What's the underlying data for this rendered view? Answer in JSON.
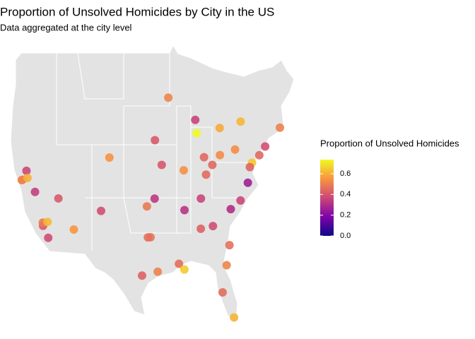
{
  "chart_data": {
    "type": "map-points",
    "title": "Proportion of Unsolved Homicides by City in the US",
    "subtitle": "Data aggregated at the city level",
    "legend_title": "Proportion of Unsolved Homicides",
    "colormap": "plasma",
    "clim": [
      0,
      0.736
    ],
    "cticks": [
      {
        "value": 0,
        "label": "0.0"
      },
      {
        "value": 0.2,
        "label": "0.2"
      },
      {
        "value": 0.4,
        "label": "0.4"
      },
      {
        "value": 0.6,
        "label": "0.6"
      }
    ],
    "xlim": [
      -125,
      -66
    ],
    "ylim": [
      24,
      50
    ],
    "x": [
      -106.65,
      -84.39,
      -76.61,
      -91.15,
      -86.8,
      -71.06,
      -78.88,
      -80.84,
      -87.63,
      -84.51,
      -83.0,
      -96.8,
      -104.99,
      -83.05,
      -78.9,
      -97.33,
      -119.79,
      -95.37,
      -86.16,
      -81.66,
      -94.58,
      -115.14,
      -118.19,
      -118.24,
      -85.76,
      -90.05,
      -80.19,
      -87.91,
      -93.27,
      -86.78,
      -90.07,
      -74.0,
      -122.27,
      -97.52,
      -95.93,
      -75.16,
      -112.07,
      -79.99,
      -77.44,
      -121.49,
      -98.49,
      -117.29,
      -117.16,
      -122.42,
      -81.1,
      -90.2,
      -121.29,
      -82.46,
      -95.99,
      -77.04
    ],
    "y": [
      35.08,
      33.75,
      39.29,
      30.45,
      33.52,
      42.36,
      42.89,
      35.23,
      41.88,
      39.1,
      39.96,
      32.78,
      39.74,
      42.33,
      35.99,
      32.76,
      36.74,
      29.76,
      39.77,
      30.33,
      39.1,
      36.17,
      33.77,
      34.05,
      38.25,
      35.15,
      25.76,
      43.04,
      44.98,
      36.16,
      29.95,
      40.71,
      37.8,
      35.47,
      41.26,
      39.95,
      33.45,
      40.44,
      37.54,
      38.58,
      29.42,
      34.11,
      32.72,
      37.77,
      32.08,
      38.63,
      37.96,
      27.95,
      36.15,
      38.91
    ],
    "values": [
      0.386,
      0.383,
      0.646,
      0.462,
      0.434,
      0.505,
      0.612,
      0.3,
      0.736,
      0.445,
      0.53,
      0.481,
      0.542,
      0.588,
      0.366,
      0.464,
      0.347,
      0.507,
      0.449,
      0.511,
      0.408,
      0.414,
      0.413,
      0.49,
      0.453,
      0.319,
      0.605,
      0.361,
      0.511,
      0.362,
      0.649,
      0.388,
      0.536,
      0.485,
      0.413,
      0.448,
      0.551,
      0.534,
      0.263,
      0.37,
      0.429,
      0.618,
      0.38,
      0.507,
      0.467,
      0.54,
      0.599,
      0.457,
      0.331,
      0.438
    ]
  }
}
